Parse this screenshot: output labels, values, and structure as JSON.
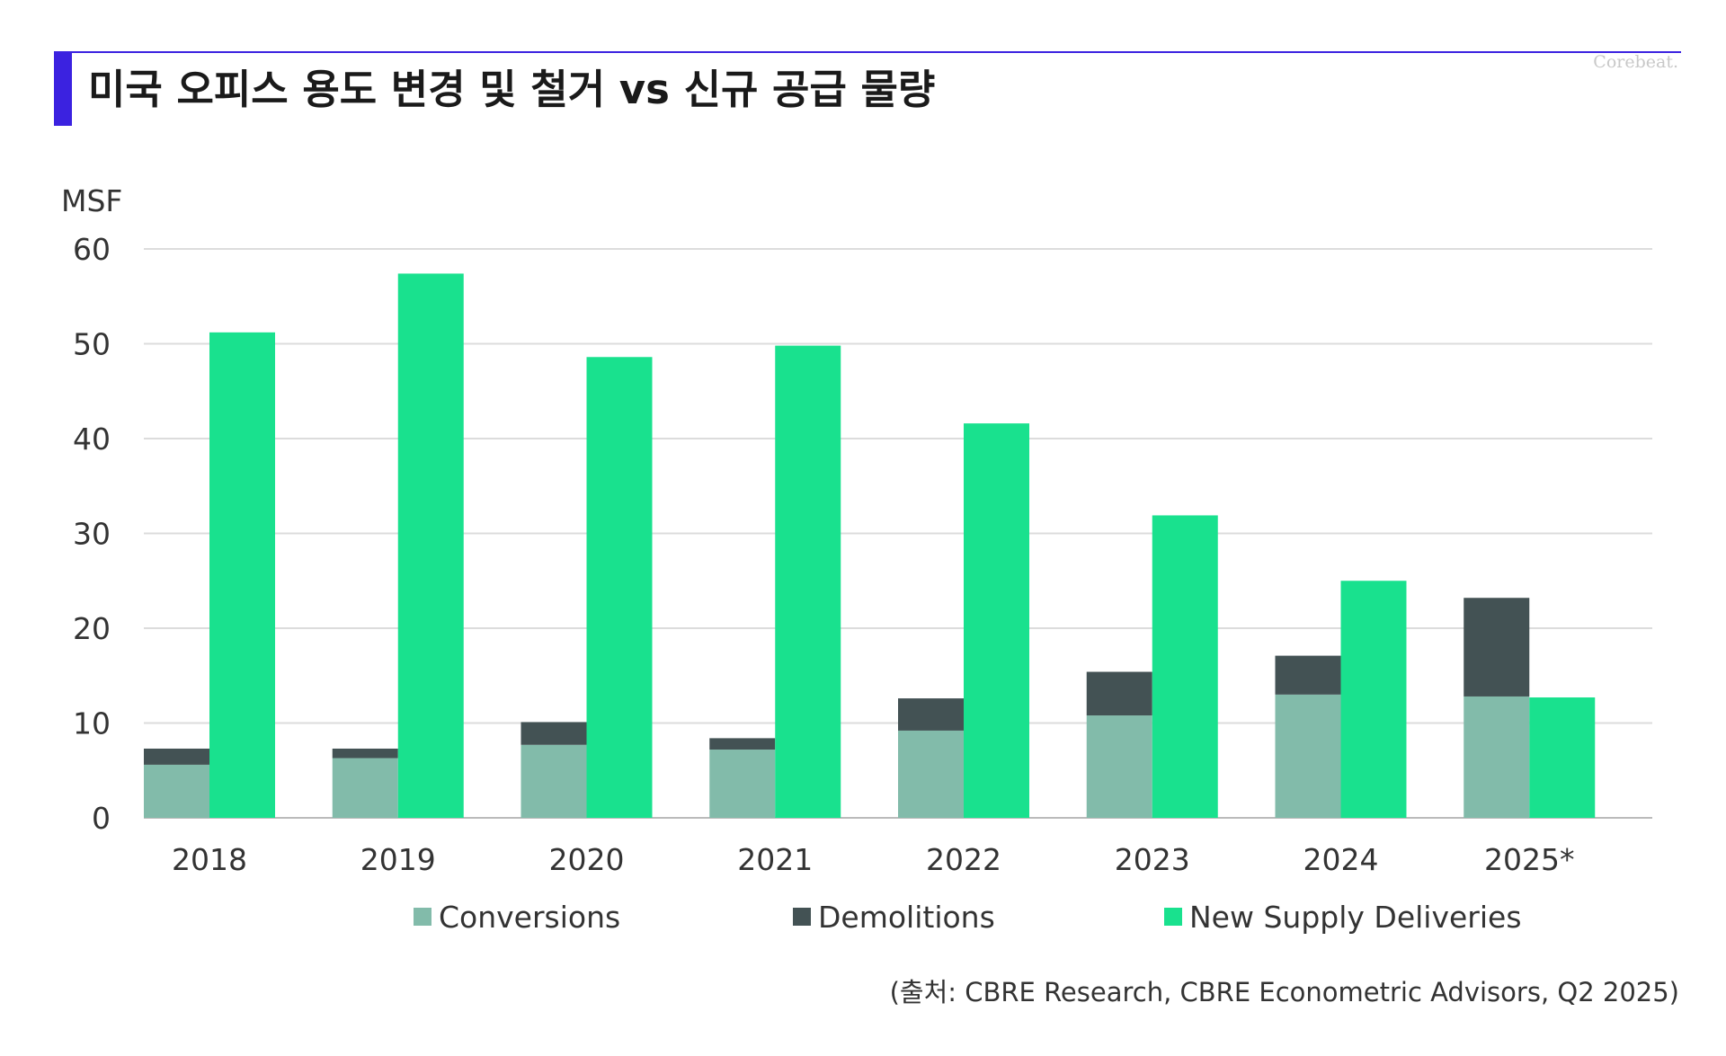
{
  "header": {
    "title": "미국 오피스 용도 변경 및 철거 vs 신규 공급 물량",
    "watermark": "Corebeat."
  },
  "chart_data": {
    "type": "bar",
    "title": "미국 오피스 용도 변경 및 철거 vs 신규 공급 물량",
    "xlabel": "",
    "ylabel": "MSF",
    "unit": "MSF",
    "ylim": [
      0,
      60
    ],
    "yticks": [
      0,
      10,
      20,
      30,
      40,
      50,
      60
    ],
    "grid": true,
    "legend_position": "bottom",
    "categories": [
      "2018",
      "2019",
      "2020",
      "2021",
      "2022",
      "2023",
      "2024",
      "2025*"
    ],
    "series": [
      {
        "name": "Conversions",
        "stack": "conversions-demolitions",
        "color": "#82bbaa",
        "values": [
          5.6,
          6.3,
          7.7,
          7.2,
          9.2,
          10.8,
          13.0,
          12.8
        ]
      },
      {
        "name": "Demolitions",
        "stack": "conversions-demolitions",
        "color": "#435254",
        "values": [
          1.7,
          1.0,
          2.4,
          1.2,
          3.4,
          4.6,
          4.1,
          10.4
        ]
      },
      {
        "name": "New Supply Deliveries",
        "stack": "new-supply",
        "color": "#19e18e",
        "values": [
          51.2,
          57.4,
          48.6,
          49.8,
          41.6,
          31.9,
          25.0,
          12.7
        ]
      }
    ]
  },
  "source": "(출처: CBRE Research, CBRE Econometric Advisors, Q2 2025)"
}
